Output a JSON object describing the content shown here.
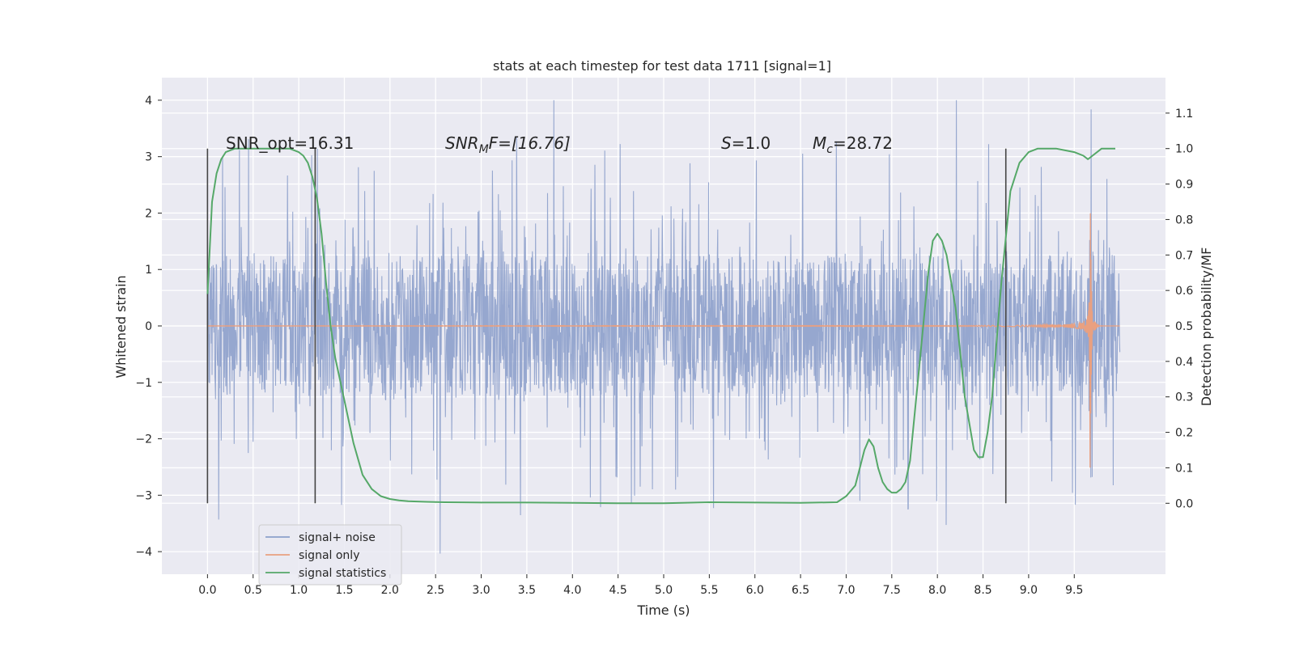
{
  "chart_data": {
    "type": "line",
    "title": "stats at each timestep for test data 1711 [signal=1]",
    "xlabel": "Time (s)",
    "ylabel": "Whitened strain",
    "y2label": "Detection probability/MF",
    "xlim": [
      -0.5,
      10.5
    ],
    "ylim": [
      -4.4,
      4.4
    ],
    "y2lim": [
      -0.2,
      1.2
    ],
    "grid": true,
    "legend_position": "lower-left",
    "x_ticks": [
      "0.0",
      "0.5",
      "1.0",
      "1.5",
      "2.0",
      "2.5",
      "3.0",
      "3.5",
      "4.0",
      "4.5",
      "5.0",
      "5.5",
      "6.0",
      "6.5",
      "7.0",
      "7.5",
      "8.0",
      "8.5",
      "9.0",
      "9.5"
    ],
    "y_ticks": [
      "4",
      "3",
      "2",
      "1",
      "0",
      "−1",
      "−2",
      "−3",
      "−4"
    ],
    "y2_ticks": [
      "1.1",
      "1.0",
      "0.9",
      "0.8",
      "0.7",
      "0.6",
      "0.5",
      "0.4",
      "0.3",
      "0.2",
      "0.1",
      "0.0"
    ],
    "annotations": {
      "snr_opt": "SNR_opt=16.31",
      "snr_mf_base": "SNR",
      "snr_mf_sub": "M",
      "snr_mf_rest": "F=[16.76]",
      "s_base": "S",
      "s_rest": "=1.0",
      "mc_base": "M",
      "mc_sub": "c",
      "mc_rest": "=28.72"
    },
    "vlines_x": [
      0.0,
      1.18,
      8.75
    ],
    "series": [
      {
        "name": "signal+ noise",
        "color": "#8da0cb",
        "note_values": "whitened noise, roughly |y|<1.3 with spikes to ~3.5",
        "noise_amplitude": 1.25,
        "x_range": [
          0.0,
          10.0
        ]
      },
      {
        "name": "signal only",
        "color": "#e9a080",
        "chirp": {
          "t_merge": 9.67,
          "peak": 3.1
        }
      },
      {
        "name": "signal statistics",
        "color": "#55a868",
        "x": [
          0.0,
          0.05,
          0.1,
          0.15,
          0.2,
          0.3,
          0.4,
          0.5,
          0.6,
          0.7,
          0.8,
          0.9,
          1.0,
          1.05,
          1.1,
          1.15,
          1.2,
          1.25,
          1.3,
          1.35,
          1.4,
          1.5,
          1.6,
          1.7,
          1.8,
          1.9,
          2.0,
          2.1,
          2.2,
          2.4,
          2.6,
          3.0,
          3.5,
          4.0,
          4.5,
          5.0,
          5.5,
          6.0,
          6.5,
          6.9,
          7.0,
          7.1,
          7.15,
          7.2,
          7.25,
          7.3,
          7.35,
          7.4,
          7.45,
          7.5,
          7.55,
          7.6,
          7.65,
          7.7,
          7.8,
          7.9,
          7.95,
          8.0,
          8.05,
          8.1,
          8.2,
          8.3,
          8.4,
          8.45,
          8.5,
          8.55,
          8.6,
          8.7,
          8.8,
          8.9,
          9.0,
          9.1,
          9.2,
          9.3,
          9.4,
          9.5,
          9.6,
          9.65,
          9.7,
          9.8,
          9.9,
          9.95
        ],
        "values": [
          0.59,
          0.85,
          0.93,
          0.97,
          0.99,
          1.0,
          1.0,
          1.0,
          1.0,
          1.0,
          1.0,
          1.0,
          0.99,
          0.98,
          0.96,
          0.92,
          0.86,
          0.76,
          0.62,
          0.5,
          0.41,
          0.29,
          0.17,
          0.08,
          0.04,
          0.02,
          0.012,
          0.008,
          0.006,
          0.004,
          0.003,
          0.002,
          0.002,
          0.001,
          0.0,
          0.0,
          0.003,
          0.002,
          0.001,
          0.003,
          0.02,
          0.05,
          0.1,
          0.15,
          0.18,
          0.16,
          0.1,
          0.06,
          0.04,
          0.03,
          0.03,
          0.04,
          0.06,
          0.12,
          0.38,
          0.65,
          0.74,
          0.76,
          0.74,
          0.7,
          0.55,
          0.3,
          0.15,
          0.13,
          0.13,
          0.2,
          0.3,
          0.62,
          0.88,
          0.96,
          0.99,
          1.0,
          1.0,
          1.0,
          0.995,
          0.99,
          0.98,
          0.97,
          0.98,
          1.0,
          1.0,
          1.0
        ]
      }
    ]
  }
}
